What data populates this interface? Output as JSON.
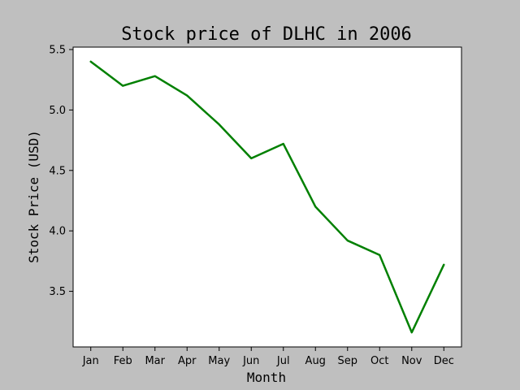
{
  "chart_data": {
    "type": "line",
    "title": "Stock price of DLHC in 2006",
    "xlabel": "Month",
    "ylabel": "Stock Price (USD)",
    "categories": [
      "Jan",
      "Feb",
      "Mar",
      "Apr",
      "May",
      "Jun",
      "Jul",
      "Aug",
      "Sep",
      "Oct",
      "Nov",
      "Dec"
    ],
    "series": [
      {
        "values": [
          5.4,
          5.2,
          5.28,
          5.12,
          4.88,
          4.6,
          4.72,
          4.2,
          3.92,
          3.8,
          3.16,
          3.72
        ],
        "color": "#008000"
      }
    ],
    "ylim": [
      3.04,
      5.52
    ],
    "yticks": [
      "3.5",
      "4.0",
      "4.5",
      "5.0",
      "5.5"
    ],
    "grid": false,
    "legend": "none"
  },
  "colors": {
    "background": "#bfbfbf",
    "plot_area": "#ffffff",
    "line": "#008000"
  }
}
